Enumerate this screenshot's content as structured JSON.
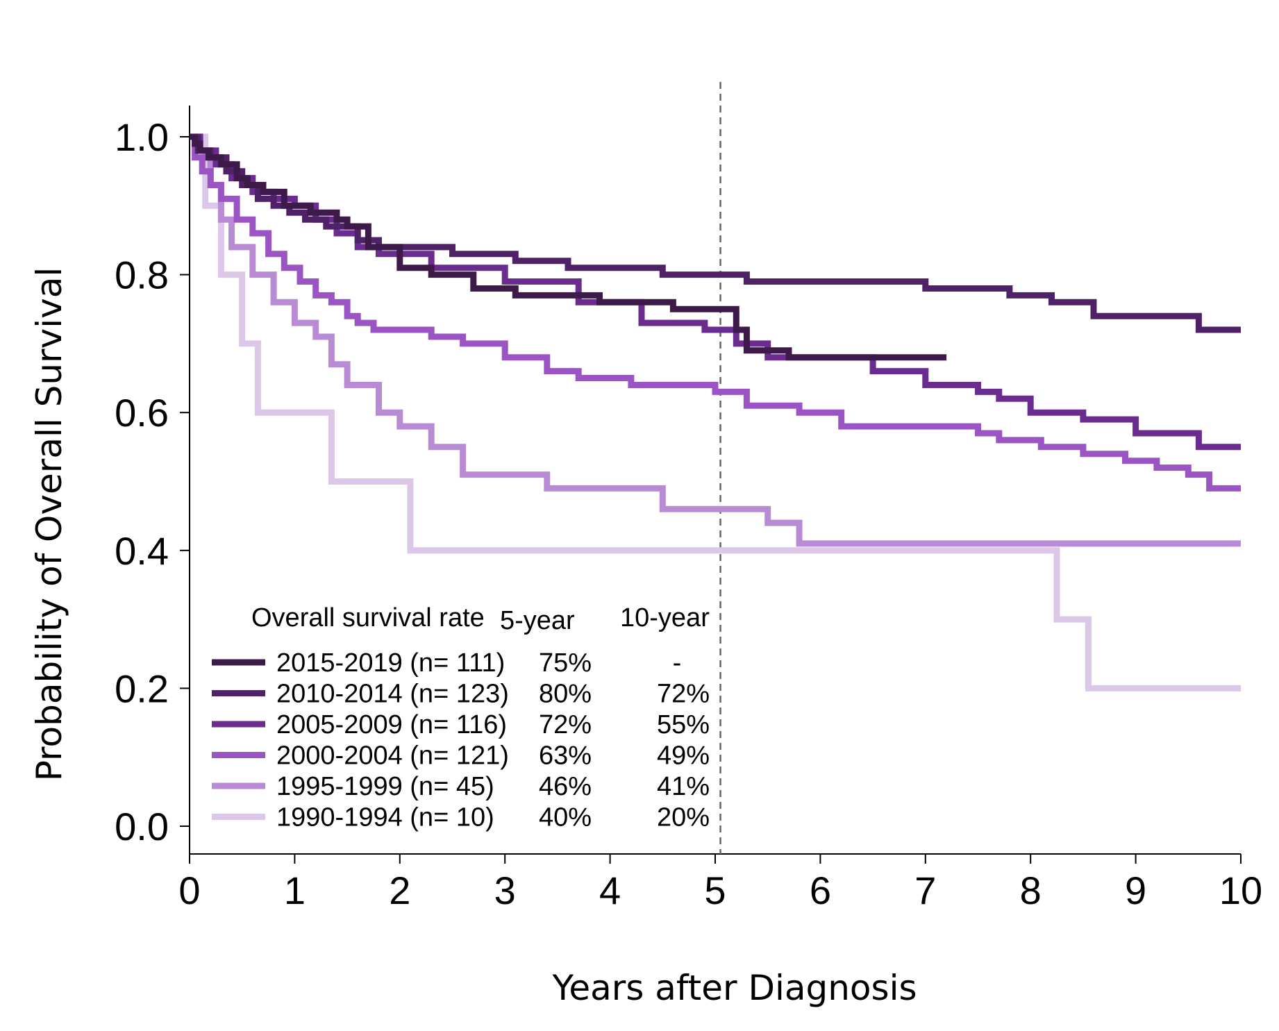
{
  "chart_data": {
    "type": "line",
    "step": true,
    "xlabel": "Years after Diagnosis",
    "ylabel": "Probability of Overall Survival",
    "xlim": [
      0,
      10
    ],
    "ylim": [
      0,
      1
    ],
    "x_ticks": [
      "0",
      "1",
      "2",
      "3",
      "4",
      "5",
      "6",
      "7",
      "8",
      "9",
      "10"
    ],
    "y_ticks": [
      "0.0",
      "0.2",
      "0.4",
      "0.6",
      "0.8",
      "1.0"
    ],
    "reference_line_x": 5.05,
    "legend": {
      "header": "Overall survival rate",
      "col_5yr": "5-year",
      "col_10yr": "10-year",
      "placement": "bottom-left"
    },
    "series": [
      {
        "name": "2015-2019 (n= 111)",
        "five_year": "75%",
        "ten_year": "-",
        "color": "#3d1a4a",
        "x": [
          0,
          0.05,
          0.1,
          0.18,
          0.3,
          0.45,
          0.55,
          0.7,
          0.9,
          1.15,
          1.4,
          1.5,
          1.7,
          2.0,
          2.3,
          2.7,
          3.1,
          3.9,
          4.6,
          5.2,
          5.3,
          5.7,
          6.5,
          7.2
        ],
        "y": [
          1.0,
          0.99,
          0.98,
          0.97,
          0.96,
          0.94,
          0.93,
          0.92,
          0.9,
          0.89,
          0.88,
          0.87,
          0.84,
          0.81,
          0.8,
          0.78,
          0.77,
          0.76,
          0.75,
          0.72,
          0.69,
          0.68,
          0.68,
          0.68
        ]
      },
      {
        "name": "2010-2014 (n= 123)",
        "five_year": "80%",
        "ten_year": "72%",
        "color": "#4f2268",
        "x": [
          0,
          0.08,
          0.2,
          0.35,
          0.5,
          0.65,
          0.8,
          0.95,
          1.1,
          1.3,
          1.6,
          1.8,
          2.5,
          3.1,
          3.6,
          4.5,
          5.3,
          6.0,
          7.0,
          7.8,
          8.2,
          8.6,
          9.6,
          10.0
        ],
        "y": [
          1.0,
          0.98,
          0.97,
          0.95,
          0.93,
          0.91,
          0.9,
          0.89,
          0.88,
          0.87,
          0.85,
          0.84,
          0.83,
          0.82,
          0.81,
          0.8,
          0.79,
          0.79,
          0.78,
          0.77,
          0.76,
          0.74,
          0.72,
          0.72
        ]
      },
      {
        "name": "2005-2009 (n= 116)",
        "five_year": "72%",
        "ten_year": "55%",
        "color": "#6a2c8e",
        "x": [
          0,
          0.1,
          0.25,
          0.4,
          0.6,
          0.8,
          1.0,
          1.2,
          1.4,
          1.6,
          1.8,
          2.3,
          3.0,
          3.7,
          4.3,
          4.9,
          5.2,
          5.5,
          6.5,
          7.0,
          7.5,
          7.7,
          8.0,
          8.5,
          9.0,
          9.6,
          10.0
        ],
        "y": [
          1.0,
          0.98,
          0.96,
          0.94,
          0.92,
          0.91,
          0.9,
          0.88,
          0.86,
          0.84,
          0.83,
          0.81,
          0.79,
          0.76,
          0.73,
          0.72,
          0.7,
          0.68,
          0.66,
          0.64,
          0.63,
          0.62,
          0.6,
          0.59,
          0.57,
          0.55,
          0.55
        ]
      },
      {
        "name": "2000-2004 (n= 121)",
        "five_year": "63%",
        "ten_year": "49%",
        "color": "#9b54c4",
        "x": [
          0,
          0.05,
          0.12,
          0.2,
          0.3,
          0.45,
          0.6,
          0.75,
          0.9,
          1.05,
          1.2,
          1.35,
          1.5,
          1.6,
          1.75,
          2.3,
          2.6,
          3.0,
          3.4,
          3.7,
          4.2,
          5.0,
          5.3,
          5.8,
          6.2,
          7.0,
          7.5,
          7.7,
          8.1,
          8.5,
          8.9,
          9.2,
          9.5,
          9.7,
          10.0
        ],
        "y": [
          1.0,
          0.97,
          0.95,
          0.93,
          0.91,
          0.88,
          0.86,
          0.83,
          0.81,
          0.79,
          0.77,
          0.76,
          0.74,
          0.73,
          0.72,
          0.71,
          0.7,
          0.68,
          0.66,
          0.65,
          0.64,
          0.63,
          0.61,
          0.6,
          0.58,
          0.58,
          0.57,
          0.56,
          0.55,
          0.54,
          0.53,
          0.52,
          0.51,
          0.49,
          0.49
        ]
      },
      {
        "name": "1995-1999 (n= 45)",
        "five_year": "46%",
        "ten_year": "41%",
        "color": "#b98bd5",
        "x": [
          0,
          0.1,
          0.2,
          0.3,
          0.4,
          0.6,
          0.8,
          1.0,
          1.2,
          1.35,
          1.5,
          1.8,
          2.0,
          2.3,
          2.6,
          3.4,
          4.5,
          5.0,
          5.5,
          5.8,
          10.0
        ],
        "y": [
          1.0,
          0.98,
          0.93,
          0.88,
          0.84,
          0.8,
          0.76,
          0.73,
          0.71,
          0.67,
          0.64,
          0.6,
          0.58,
          0.55,
          0.51,
          0.49,
          0.46,
          0.46,
          0.44,
          0.41,
          0.41
        ]
      },
      {
        "name": "1990-1994 (n= 10)",
        "five_year": "40%",
        "ten_year": "20%",
        "color": "#dcc7e8",
        "x": [
          0,
          0.15,
          0.3,
          0.5,
          0.65,
          1.35,
          2.1,
          8.25,
          8.55,
          10.0
        ],
        "y": [
          1.0,
          0.9,
          0.8,
          0.7,
          0.6,
          0.5,
          0.4,
          0.3,
          0.2,
          0.2
        ]
      }
    ]
  }
}
